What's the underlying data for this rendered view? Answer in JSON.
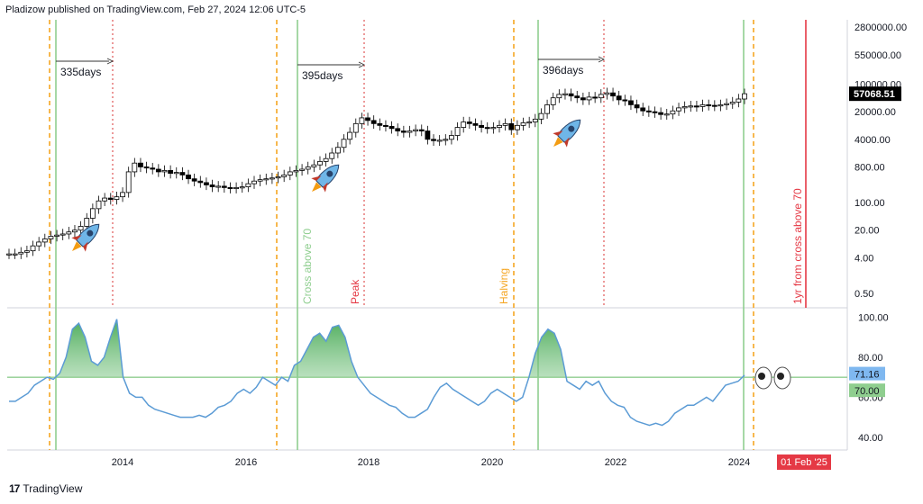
{
  "header": {
    "publisher_line": "Pladizow published on TradingView.com, Feb 27, 2024 12:06 UTC-5"
  },
  "footer": {
    "brand": "TradingView"
  },
  "colors": {
    "up": "#ffffff",
    "down": "#000000",
    "rsi": "#5b9bd5",
    "cross": "#8fce8f",
    "orange": "#f5a623",
    "red_dotted": "#e05555",
    "red_line": "#e53945"
  },
  "chart_data": [
    {
      "type": "candlestick",
      "scale": "log",
      "price_axis_labels": [
        "2800000.00",
        "550000.00",
        "100000.00",
        "20000.00",
        "4000.00",
        "800.00",
        "100.00",
        "20.00",
        "4.00",
        "0.50"
      ],
      "last_price_label": "57068.51",
      "x_axis_labels": [
        "2014",
        "2016",
        "2018",
        "2020",
        "2022",
        "2024"
      ],
      "date_badge": "01 Feb '25",
      "annotations": {
        "intervals": [
          "335days",
          "395days",
          "396days"
        ],
        "vertical_labels": [
          "Cross above 70",
          "Peak",
          "Halving",
          "1yr from cross above 70"
        ]
      },
      "series": [
        {
          "name": "",
          "values": [
            5,
            5,
            5.5,
            6,
            8,
            10,
            12,
            14,
            15,
            16,
            18,
            20,
            25,
            40,
            70,
            110,
            130,
            120,
            140,
            180,
            600,
            1000,
            800,
            750,
            700,
            600,
            650,
            550,
            580,
            500,
            400,
            350,
            320,
            280,
            250,
            260,
            240,
            230,
            240,
            250,
            300,
            350,
            380,
            400,
            420,
            450,
            500,
            600,
            650,
            700,
            800,
            900,
            1100,
            1300,
            1800,
            2500,
            4000,
            6000,
            10000,
            14000,
            12000,
            10000,
            9000,
            8500,
            7500,
            6500,
            6000,
            6500,
            7000,
            6500,
            4000,
            3700,
            3800,
            4000,
            5000,
            8000,
            11000,
            10000,
            9000,
            8000,
            7500,
            8000,
            9000,
            10000,
            7000,
            9000,
            10500,
            11000,
            13000,
            18000,
            30000,
            45000,
            55000,
            57000,
            50000,
            45000,
            40000,
            47000,
            45000,
            55000,
            60000,
            50000,
            40000,
            38000,
            30000,
            25000,
            21000,
            20000,
            19000,
            17000,
            17500,
            21000,
            25000,
            27000,
            28000,
            27000,
            30000,
            29000,
            28000,
            30000,
            32000,
            35000,
            42000,
            57068
          ]
        }
      ]
    },
    {
      "type": "line",
      "name": "RSI",
      "y_axis_labels": [
        "100.00",
        "80.00",
        "60.00",
        "40.00"
      ],
      "level_labels": [
        "71.16",
        "70.00"
      ],
      "ylim": [
        35,
        102
      ],
      "threshold": 70,
      "series": [
        {
          "name": "",
          "values": [
            58,
            58,
            60,
            62,
            66,
            68,
            70,
            69,
            72,
            80,
            94,
            97,
            90,
            78,
            76,
            80,
            90,
            99,
            70,
            62,
            60,
            60,
            56,
            54,
            53,
            52,
            51,
            50,
            50,
            50,
            51,
            50,
            52,
            55,
            56,
            58,
            62,
            64,
            62,
            65,
            70,
            68,
            66,
            70,
            68,
            76,
            78,
            84,
            90,
            92,
            88,
            95,
            96,
            90,
            78,
            70,
            66,
            62,
            60,
            58,
            56,
            55,
            52,
            50,
            50,
            52,
            54,
            60,
            65,
            67,
            64,
            62,
            60,
            58,
            56,
            58,
            62,
            64,
            62,
            60,
            58,
            60,
            70,
            82,
            90,
            94,
            92,
            84,
            68,
            66,
            64,
            68,
            66,
            68,
            62,
            58,
            56,
            55,
            50,
            48,
            47,
            46,
            47,
            46,
            48,
            52,
            54,
            56,
            56,
            58,
            60,
            58,
            62,
            66,
            67,
            68,
            71
          ]
        }
      ]
    }
  ]
}
